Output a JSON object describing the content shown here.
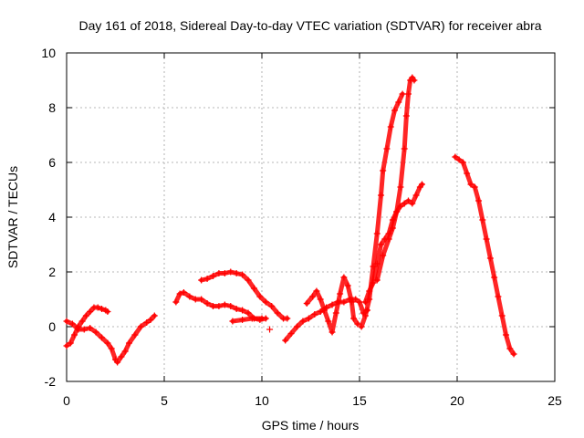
{
  "chart_data": {
    "type": "scatter",
    "title": "Day 161 of 2018, Sidereal Day-to-day VTEC variation (SDTVAR) for receiver abra",
    "xlabel": "GPS time / hours",
    "ylabel": "SDTVAR / TECUs",
    "xlim": [
      0,
      25
    ],
    "ylim": [
      -2,
      10
    ],
    "xticks": [
      "0",
      "5",
      "10",
      "15",
      "20",
      "25"
    ],
    "yticks": [
      "-2",
      "0",
      "2",
      "4",
      "6",
      "8",
      "10"
    ],
    "grid": true,
    "marker": "+",
    "color": "#ff0000",
    "series": [
      {
        "name": "seg1",
        "points": [
          [
            0.0,
            -0.7
          ],
          [
            0.2,
            -0.6
          ],
          [
            0.4,
            -0.3
          ],
          [
            0.6,
            0.0
          ],
          [
            0.8,
            0.2
          ],
          [
            1.0,
            0.4
          ],
          [
            1.2,
            0.55
          ],
          [
            1.4,
            0.7
          ],
          [
            1.6,
            0.7
          ],
          [
            1.8,
            0.65
          ],
          [
            2.0,
            0.6
          ],
          [
            2.1,
            0.55
          ]
        ]
      },
      {
        "name": "seg2",
        "points": [
          [
            0.0,
            0.2
          ],
          [
            0.3,
            0.1
          ],
          [
            0.6,
            -0.1
          ],
          [
            0.9,
            -0.1
          ],
          [
            1.2,
            -0.05
          ],
          [
            1.5,
            -0.2
          ],
          [
            1.8,
            -0.4
          ],
          [
            2.1,
            -0.6
          ],
          [
            2.3,
            -0.8
          ],
          [
            2.5,
            -1.2
          ],
          [
            2.6,
            -1.3
          ],
          [
            2.8,
            -1.1
          ],
          [
            3.0,
            -0.9
          ],
          [
            3.2,
            -0.6
          ],
          [
            3.5,
            -0.3
          ],
          [
            3.8,
            0.0
          ],
          [
            4.1,
            0.15
          ],
          [
            4.3,
            0.25
          ],
          [
            4.5,
            0.4
          ]
        ]
      },
      {
        "name": "seg3",
        "points": [
          [
            5.6,
            0.9
          ],
          [
            5.8,
            1.2
          ],
          [
            6.0,
            1.25
          ],
          [
            6.3,
            1.1
          ],
          [
            6.6,
            1.0
          ],
          [
            6.9,
            1.0
          ],
          [
            7.2,
            0.85
          ],
          [
            7.5,
            0.75
          ],
          [
            7.8,
            0.75
          ],
          [
            8.1,
            0.8
          ],
          [
            8.4,
            0.75
          ],
          [
            8.7,
            0.65
          ],
          [
            9.0,
            0.6
          ],
          [
            9.3,
            0.5
          ],
          [
            9.6,
            0.3
          ],
          [
            9.9,
            0.25
          ],
          [
            10.2,
            0.3
          ]
        ]
      },
      {
        "name": "seg4",
        "points": [
          [
            6.9,
            1.7
          ],
          [
            7.2,
            1.75
          ],
          [
            7.5,
            1.85
          ],
          [
            7.8,
            1.95
          ],
          [
            8.1,
            1.95
          ],
          [
            8.4,
            2.0
          ],
          [
            8.7,
            1.95
          ],
          [
            9.0,
            1.9
          ],
          [
            9.3,
            1.7
          ],
          [
            9.6,
            1.4
          ],
          [
            9.9,
            1.1
          ],
          [
            10.2,
            0.9
          ],
          [
            10.5,
            0.75
          ],
          [
            10.8,
            0.5
          ],
          [
            11.1,
            0.3
          ],
          [
            11.3,
            0.3
          ]
        ]
      },
      {
        "name": "seg5",
        "points": [
          [
            8.5,
            0.2
          ],
          [
            9.0,
            0.25
          ],
          [
            9.5,
            0.3
          ],
          [
            10.0,
            0.3
          ]
        ]
      },
      {
        "name": "seg6",
        "points": [
          [
            10.4,
            -0.1
          ]
        ]
      },
      {
        "name": "seg7",
        "points": [
          [
            11.2,
            -0.5
          ],
          [
            11.5,
            -0.25
          ],
          [
            11.8,
            0.0
          ],
          [
            12.1,
            0.2
          ],
          [
            12.4,
            0.3
          ],
          [
            12.7,
            0.45
          ],
          [
            13.0,
            0.55
          ],
          [
            13.3,
            0.7
          ],
          [
            13.6,
            0.8
          ],
          [
            13.9,
            0.9
          ],
          [
            14.2,
            0.9
          ],
          [
            14.5,
            1.0
          ],
          [
            14.8,
            1.0
          ],
          [
            15.0,
            0.9
          ],
          [
            15.2,
            0.5
          ],
          [
            15.4,
            0.6
          ]
        ]
      },
      {
        "name": "seg8",
        "points": [
          [
            12.3,
            0.85
          ],
          [
            12.6,
            1.1
          ],
          [
            12.8,
            1.3
          ],
          [
            13.0,
            1.0
          ],
          [
            13.2,
            0.6
          ],
          [
            13.4,
            0.2
          ],
          [
            13.6,
            -0.2
          ],
          [
            13.8,
            0.5
          ],
          [
            14.0,
            1.2
          ],
          [
            14.2,
            1.8
          ],
          [
            14.4,
            1.5
          ],
          [
            14.6,
            0.9
          ],
          [
            14.7,
            0.3
          ],
          [
            14.9,
            0.1
          ]
        ]
      },
      {
        "name": "seg9",
        "points": [
          [
            15.1,
            0.0
          ],
          [
            15.3,
            0.4
          ],
          [
            15.5,
            1.0
          ],
          [
            15.7,
            2.2
          ],
          [
            15.9,
            3.4
          ],
          [
            16.1,
            4.8
          ],
          [
            16.2,
            5.7
          ],
          [
            16.4,
            6.5
          ],
          [
            16.6,
            7.3
          ],
          [
            16.8,
            7.9
          ],
          [
            17.0,
            8.2
          ],
          [
            17.2,
            8.5
          ]
        ]
      },
      {
        "name": "seg10",
        "points": [
          [
            15.3,
            0.9
          ],
          [
            15.5,
            1.3
          ],
          [
            15.7,
            1.6
          ],
          [
            15.9,
            2.3
          ],
          [
            16.1,
            3.0
          ],
          [
            16.3,
            3.2
          ],
          [
            16.5,
            3.4
          ],
          [
            16.7,
            3.9
          ],
          [
            16.9,
            4.2
          ],
          [
            17.1,
            4.4
          ],
          [
            17.3,
            4.5
          ],
          [
            17.5,
            4.6
          ],
          [
            17.7,
            4.5
          ],
          [
            17.9,
            4.8
          ],
          [
            18.1,
            5.1
          ],
          [
            18.2,
            5.2
          ]
        ]
      },
      {
        "name": "seg11",
        "points": [
          [
            15.9,
            1.7
          ],
          [
            16.2,
            2.6
          ],
          [
            16.5,
            3.2
          ],
          [
            16.7,
            3.6
          ],
          [
            16.9,
            4.2
          ],
          [
            17.1,
            5.1
          ],
          [
            17.3,
            6.5
          ],
          [
            17.4,
            7.7
          ],
          [
            17.5,
            8.5
          ],
          [
            17.6,
            9.0
          ],
          [
            17.7,
            9.1
          ],
          [
            17.8,
            9.0
          ]
        ]
      },
      {
        "name": "seg12",
        "points": [
          [
            19.9,
            6.2
          ],
          [
            20.1,
            6.1
          ],
          [
            20.3,
            6.0
          ],
          [
            20.5,
            5.6
          ],
          [
            20.7,
            5.2
          ],
          [
            20.9,
            5.1
          ],
          [
            21.1,
            4.6
          ],
          [
            21.3,
            3.9
          ],
          [
            21.5,
            3.2
          ],
          [
            21.7,
            2.5
          ],
          [
            21.9,
            1.8
          ],
          [
            22.1,
            1.1
          ],
          [
            22.3,
            0.4
          ],
          [
            22.5,
            -0.3
          ],
          [
            22.7,
            -0.8
          ],
          [
            22.9,
            -1.0
          ]
        ]
      }
    ]
  }
}
